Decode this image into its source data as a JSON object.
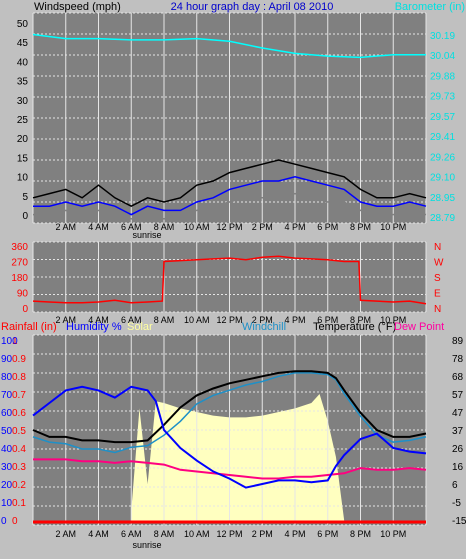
{
  "chart_data": [
    {
      "type": "line",
      "title": "24 hour graph day : April 08 2010",
      "ylabel": "Windspeed (mph)",
      "y2label": "Barometer (in)",
      "ylim": [
        0,
        50
      ],
      "y2lim": [
        28.79,
        30.35
      ],
      "yticks": [
        "50",
        "45",
        "40",
        "35",
        "30",
        "25",
        "20",
        "15",
        "10",
        "5",
        "0"
      ],
      "y2ticks": [
        "30.19",
        "30.04",
        "29.88",
        "29.73",
        "29.57",
        "29.41",
        "29.26",
        "29.10",
        "28.95",
        "28.79"
      ],
      "xticks": [
        "2 AM",
        "4 AM",
        "6 AM",
        "8 AM",
        "10 AM",
        "12 PM",
        "2 PM",
        "4 PM",
        "6 PM",
        "8 PM",
        "10 PM"
      ],
      "annotation": "sunrise",
      "grid": true,
      "colors": {
        "gust": "#000000",
        "wind": "#0000ff",
        "avg": "#808080",
        "barometer": "#00ffff"
      },
      "barometer": {
        "x": [
          0,
          2,
          4,
          6,
          8,
          10,
          12,
          14,
          16,
          18,
          20,
          22,
          24
        ],
        "values": [
          30.19,
          30.16,
          30.16,
          30.15,
          30.15,
          30.16,
          30.14,
          30.09,
          30.05,
          30.03,
          30.02,
          30.04,
          30.04
        ]
      },
      "wind": {
        "x": [
          0,
          1,
          2,
          3,
          4,
          5,
          6,
          7,
          8,
          9,
          10,
          11,
          12,
          13,
          14,
          15,
          16,
          17,
          18,
          19,
          20,
          21,
          22,
          23,
          24
        ],
        "values": [
          4,
          4,
          5,
          4,
          5,
          4,
          2,
          4,
          3,
          3,
          5,
          6,
          8,
          9,
          10,
          10,
          11,
          10,
          9,
          8,
          5,
          4,
          4,
          5,
          4
        ]
      },
      "gust": {
        "x": [
          0,
          1,
          2,
          3,
          4,
          5,
          6,
          7,
          8,
          9,
          10,
          11,
          12,
          13,
          14,
          15,
          16,
          17,
          18,
          19,
          20,
          21,
          22,
          23,
          24
        ],
        "values": [
          6,
          7,
          8,
          6,
          9,
          6,
          4,
          6,
          5,
          6,
          9,
          10,
          12,
          13,
          14,
          15,
          14,
          13,
          12,
          11,
          8,
          6,
          6,
          7,
          6
        ]
      },
      "avg": {
        "x": [
          0,
          1,
          2,
          3,
          4,
          5,
          6,
          7,
          8,
          9,
          10,
          11,
          12,
          13,
          14,
          15,
          16,
          17,
          18,
          19,
          20,
          21,
          22,
          23,
          24
        ],
        "values": [
          2,
          2,
          3,
          2,
          3,
          2,
          1,
          2,
          1,
          2,
          3,
          4,
          5,
          6,
          6,
          6,
          7,
          6,
          5,
          5,
          3,
          2,
          2,
          3,
          2
        ]
      }
    },
    {
      "type": "line",
      "ylim": [
        0,
        360
      ],
      "yticks": [
        "360",
        "270",
        "180",
        "90",
        "0"
      ],
      "y2ticks": [
        "N",
        "W",
        "S",
        "E",
        "N"
      ],
      "xticks": [
        "2 AM",
        "4 AM",
        "6 AM",
        "8 AM",
        "10 AM",
        "12 PM",
        "2 PM",
        "4 PM",
        "6 PM",
        "8 PM",
        "10 PM"
      ],
      "colors": {
        "direction": "#ff0000"
      },
      "direction": {
        "x": [
          0,
          1,
          2,
          3,
          4,
          5,
          6,
          7,
          7.9,
          8,
          9,
          10,
          11,
          12,
          13,
          14,
          15,
          16,
          17,
          18,
          19,
          19.9,
          20,
          21,
          22,
          23,
          24
        ],
        "values": [
          40,
          35,
          30,
          30,
          35,
          45,
          30,
          35,
          40,
          270,
          275,
          280,
          285,
          290,
          280,
          295,
          300,
          290,
          285,
          280,
          270,
          270,
          45,
          40,
          35,
          40,
          25
        ]
      }
    },
    {
      "type": "line",
      "legend": [
        "Rainfall (in)",
        "Humidity %",
        "Solar",
        "Windchill",
        "Temperature (°F)",
        "Dew Point"
      ],
      "yticks_rain": [
        "1",
        "0.9",
        "0.8",
        "0.7",
        "0.6",
        "0.5",
        "0.4",
        "0.3",
        "0.2",
        "0.1",
        "0"
      ],
      "yticks_hum": [
        "100",
        "90",
        "80",
        "70",
        "60",
        "50",
        "40",
        "30",
        "20",
        "10",
        "0"
      ],
      "yticks_temp": [
        "89",
        "78",
        "68",
        "57",
        "47",
        "37",
        "26",
        "16",
        "6",
        "-5",
        "-15"
      ],
      "ylim": [
        -15,
        89
      ],
      "xticks": [
        "2 AM",
        "4 AM",
        "6 AM",
        "8 AM",
        "10 AM",
        "12 PM",
        "2 PM",
        "4 PM",
        "6 PM",
        "8 PM",
        "10 PM"
      ],
      "annotation": "sunrise",
      "colors": {
        "rain": "#ff0000",
        "humidity": "#0000ff",
        "solar": "#ffffc0",
        "windchill": "#1e90c8",
        "temperature": "#000000",
        "dewpoint": "#ff0080"
      },
      "humidity": {
        "x": [
          0,
          1,
          2,
          3,
          4,
          5,
          6,
          7,
          7.5,
          8,
          9,
          10,
          11,
          12,
          13,
          14,
          15,
          16,
          17,
          18,
          18.5,
          19,
          20,
          21,
          22,
          23,
          24
        ],
        "values": [
          58,
          65,
          72,
          74,
          72,
          68,
          74,
          72,
          66,
          50,
          40,
          33,
          27,
          23,
          18,
          20,
          22,
          22,
          21,
          22,
          30,
          36,
          45,
          48,
          40,
          38,
          37
        ]
      },
      "temperature": {
        "x": [
          0,
          1,
          2,
          3,
          4,
          5,
          6,
          7,
          8,
          9,
          10,
          11,
          12,
          13,
          14,
          15,
          16,
          17,
          18,
          18.5,
          19,
          20,
          21,
          22,
          23,
          24
        ],
        "values": [
          37,
          33,
          33,
          31,
          31,
          30,
          30,
          31,
          40,
          50,
          57,
          61,
          64,
          66,
          68,
          70,
          71,
          71,
          70,
          67,
          60,
          47,
          37,
          33,
          33,
          35
        ]
      },
      "windchill": {
        "x": [
          0,
          1,
          2,
          3,
          4,
          5,
          6,
          7,
          8,
          9,
          10,
          11,
          12,
          13,
          14,
          15,
          16,
          17,
          18,
          18.5,
          19,
          20,
          21,
          22,
          23,
          24
        ],
        "values": [
          33,
          30,
          29,
          26,
          26,
          24,
          27,
          28,
          34,
          42,
          52,
          57,
          60,
          63,
          65,
          68,
          70,
          70,
          69,
          66,
          58,
          45,
          34,
          30,
          31,
          33
        ]
      },
      "dewpoint": {
        "x": [
          0,
          1,
          2,
          3,
          4,
          5,
          6,
          7,
          8,
          9,
          10,
          11,
          12,
          13,
          14,
          15,
          16,
          17,
          18,
          19,
          20,
          21,
          22,
          23,
          24
        ],
        "values": [
          20,
          20,
          20,
          19,
          19,
          18,
          19,
          18,
          17,
          14,
          13,
          12,
          11,
          10,
          9,
          9,
          10,
          10,
          11,
          12,
          15,
          14,
          14,
          15,
          14
        ]
      },
      "solar": {
        "x": [
          6,
          6.5,
          7,
          7.5,
          8,
          9,
          10,
          11,
          12,
          13,
          14,
          15,
          16,
          17,
          17.5,
          18,
          18.5,
          19
        ],
        "values": [
          0.05,
          0.62,
          0.2,
          0.66,
          0.65,
          0.62,
          0.6,
          0.58,
          0.57,
          0.57,
          0.58,
          0.6,
          0.62,
          0.65,
          0.7,
          0.55,
          0.35,
          0.0
        ]
      }
    }
  ]
}
